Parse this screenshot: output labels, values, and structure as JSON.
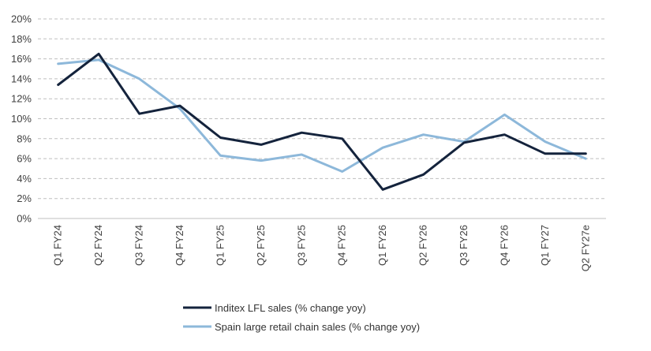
{
  "chart_data": {
    "type": "line",
    "categories": [
      "Q1 FY24",
      "Q2 FY24",
      "Q3 FY24",
      "Q4 FY24",
      "Q1 FY25",
      "Q2 FY25",
      "Q3 FY25",
      "Q4 FY25",
      "Q1 FY26",
      "Q2 FY26",
      "Q3 FY26",
      "Q4 FY26",
      "Q1 FY27",
      "Q2 FY27e"
    ],
    "y_ticks": [
      "0%",
      "2%",
      "4%",
      "6%",
      "8%",
      "10%",
      "12%",
      "14%",
      "16%",
      "18%",
      "20%"
    ],
    "ylim": [
      0,
      20
    ],
    "grid": true,
    "legend_position": "bottom",
    "series": [
      {
        "name": "Inditex LFL sales (% change yoy)",
        "color": "#14233c",
        "values": [
          13.4,
          16.5,
          10.5,
          11.3,
          8.1,
          7.4,
          8.6,
          8.0,
          2.9,
          4.4,
          7.6,
          8.4,
          6.5,
          6.5
        ]
      },
      {
        "name": "Spain large retail chain sales (% change yoy)",
        "color": "#8db8da",
        "values": [
          15.5,
          15.9,
          14.0,
          11.0,
          6.3,
          5.8,
          6.4,
          4.7,
          7.1,
          8.4,
          7.7,
          10.4,
          7.7,
          6.0
        ]
      }
    ]
  }
}
